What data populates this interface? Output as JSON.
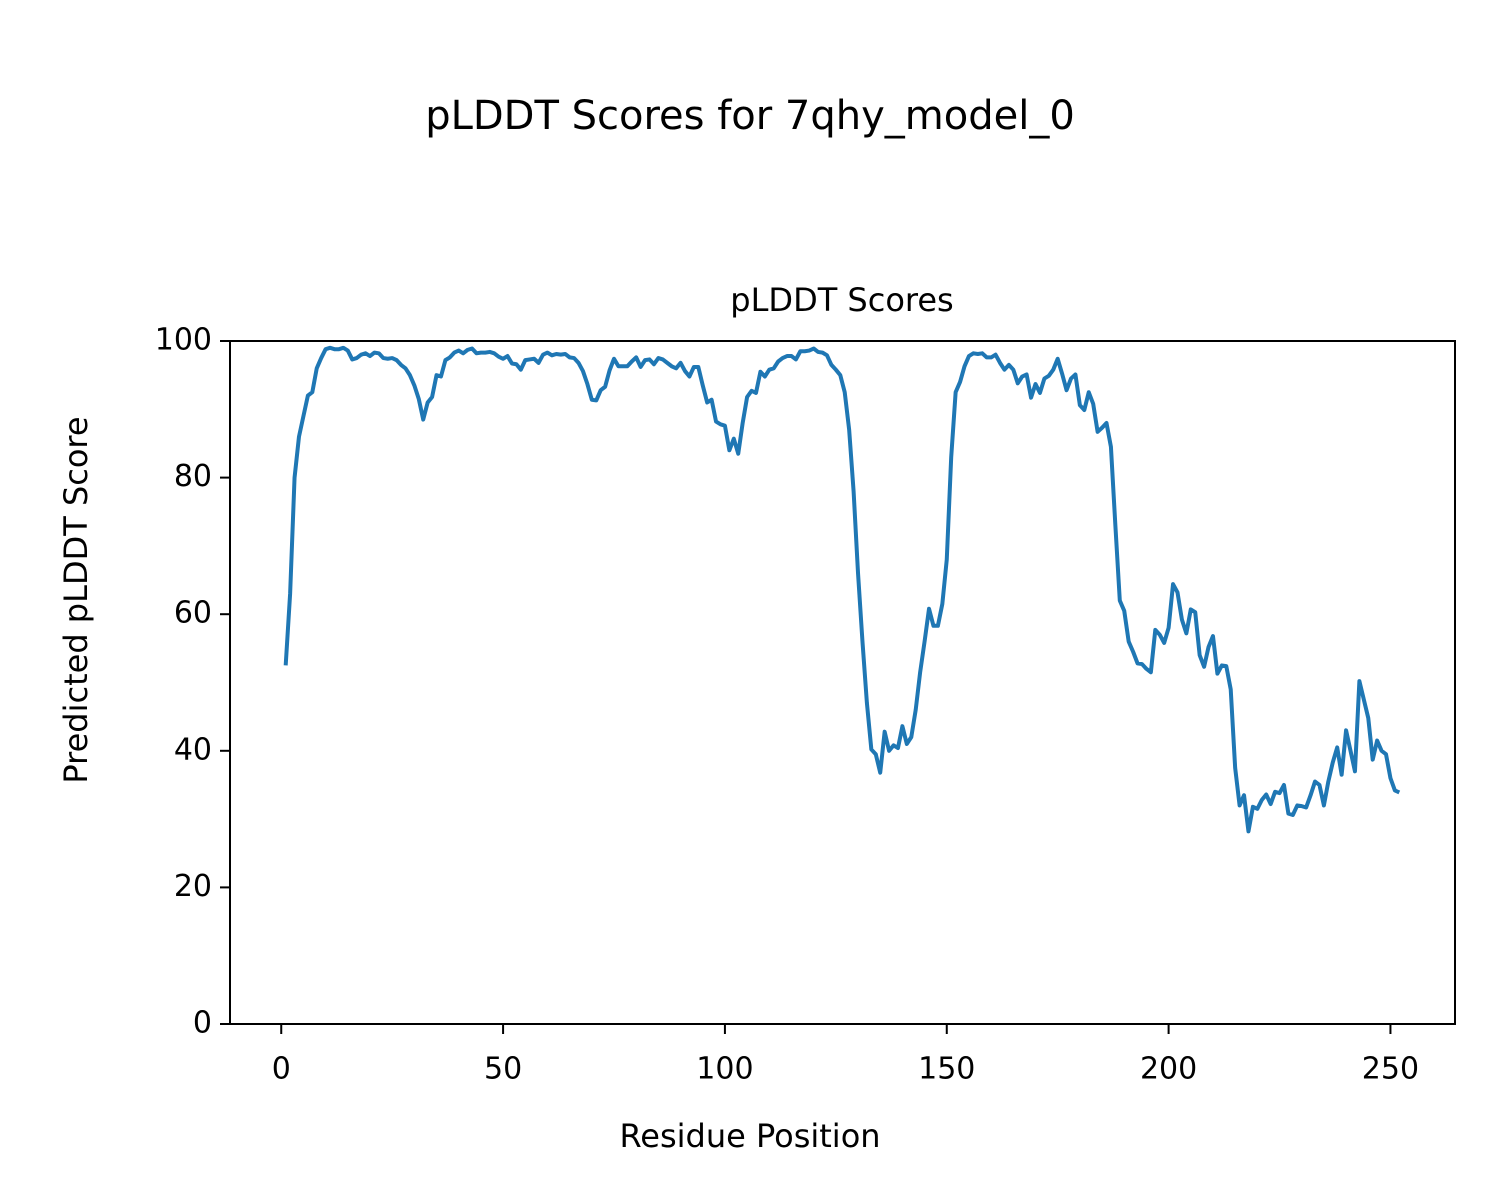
{
  "chart_data": {
    "type": "line",
    "title": "pLDDT Scores for 7qhy_model_0",
    "subtitle": "pLDDT Scores",
    "x_label": "Residue Position",
    "y_label": "Predicted pLDDT Score",
    "xlim": [
      -11.55,
      264.55
    ],
    "xticks": [
      0,
      50,
      100,
      150,
      200,
      250
    ],
    "ylim": [
      0,
      100
    ],
    "yticks": [
      0,
      20,
      40,
      60,
      80,
      100
    ],
    "series": [
      {
        "color": "#1f77b4",
        "x": [
          1,
          2,
          3,
          4,
          5,
          6,
          7,
          8,
          9,
          10,
          11,
          12,
          13,
          14,
          15,
          16,
          17,
          18,
          19,
          20,
          21,
          22,
          23,
          24,
          25,
          26,
          27,
          28,
          29,
          30,
          31,
          32,
          33,
          34,
          35,
          36,
          37,
          38,
          39,
          40,
          41,
          42,
          43,
          44,
          45,
          46,
          47,
          48,
          49,
          50,
          51,
          52,
          53,
          54,
          55,
          56,
          57,
          58,
          59,
          60,
          61,
          62,
          63,
          64,
          65,
          66,
          67,
          68,
          69,
          70,
          71,
          72,
          73,
          74,
          75,
          76,
          77,
          78,
          79,
          80,
          81,
          82,
          83,
          84,
          85,
          86,
          87,
          88,
          89,
          90,
          91,
          92,
          93,
          94,
          95,
          96,
          97,
          98,
          99,
          100,
          101,
          102,
          103,
          104,
          105,
          106,
          107,
          108,
          109,
          110,
          111,
          112,
          113,
          114,
          115,
          116,
          117,
          118,
          119,
          120,
          121,
          122,
          123,
          124,
          125,
          126,
          127,
          128,
          129,
          130,
          131,
          132,
          133,
          134,
          135,
          136,
          137,
          138,
          139,
          140,
          141,
          142,
          143,
          144,
          145,
          146,
          147,
          148,
          149,
          150,
          151,
          152,
          153,
          154,
          155,
          156,
          157,
          158,
          159,
          160,
          161,
          162,
          163,
          164,
          165,
          166,
          167,
          168,
          169,
          170,
          171,
          172,
          173,
          174,
          175,
          176,
          177,
          178,
          179,
          180,
          181,
          182,
          183,
          184,
          185,
          186,
          187,
          188,
          189,
          190,
          191,
          192,
          193,
          194,
          195,
          196,
          197,
          198,
          199,
          200,
          201,
          202,
          203,
          204,
          205,
          206,
          207,
          208,
          209,
          210,
          211,
          212,
          213,
          214,
          215,
          216,
          217,
          218,
          219,
          220,
          221,
          222,
          223,
          224,
          225,
          226,
          227,
          228,
          229,
          230,
          231,
          232,
          233,
          234,
          235,
          236,
          237,
          238,
          239,
          240,
          241,
          242,
          243,
          244,
          245,
          246,
          247,
          248,
          249,
          250,
          251,
          252
        ],
        "values": [
          52.5,
          63,
          80,
          86,
          89,
          92,
          92.5,
          96,
          97.5,
          98.8,
          99,
          98.8,
          98.8,
          99,
          98.6,
          97.3,
          97.5,
          98,
          98.2,
          97.8,
          98.3,
          98.2,
          97.5,
          97.4,
          97.5,
          97.2,
          96.5,
          96,
          95,
          93.5,
          91.5,
          88.5,
          91,
          91.8,
          95,
          94.8,
          97.2,
          97.6,
          98.3,
          98.6,
          98.2,
          98.7,
          98.9,
          98.2,
          98.3,
          98.3,
          98.4,
          98.2,
          97.7,
          97.4,
          97.8,
          96.7,
          96.6,
          95.8,
          97.2,
          97.3,
          97.4,
          96.8,
          98,
          98.3,
          97.9,
          98.1,
          98,
          98.1,
          97.6,
          97.5,
          96.8,
          95.6,
          93.7,
          91.4,
          91.3,
          92.8,
          93.3,
          95.7,
          97.4,
          96.3,
          96.3,
          96.3,
          97,
          97.6,
          96.2,
          97.2,
          97.3,
          96.6,
          97.5,
          97.3,
          96.8,
          96.3,
          96,
          96.8,
          95.6,
          94.8,
          96.2,
          96.2,
          93.5,
          91,
          91.4,
          88.2,
          87.8,
          87.6,
          84,
          85.7,
          83.5,
          88,
          91.8,
          92.7,
          92.4,
          95.5,
          94.8,
          95.8,
          96,
          97,
          97.5,
          97.8,
          97.8,
          97.3,
          98.5,
          98.5,
          98.6,
          98.9,
          98.4,
          98.3,
          97.9,
          96.5,
          95.8,
          95,
          92.5,
          87,
          78,
          66,
          56,
          47,
          40.2,
          39.5,
          36.8,
          42.8,
          40,
          40.8,
          40.4,
          43.6,
          41,
          42,
          46,
          51.5,
          56,
          60.8,
          58.3,
          58.3,
          61.5,
          68,
          83,
          92.5,
          94,
          96.3,
          97.8,
          98.2,
          98.1,
          98.2,
          97.6,
          97.6,
          98,
          96.8,
          95.8,
          96.5,
          95.8,
          93.8,
          94.8,
          95.1,
          91.7,
          93.7,
          92.4,
          94.5,
          94.9,
          95.8,
          97.4,
          95.2,
          92.8,
          94.5,
          95.1,
          90.6,
          89.9,
          92.5,
          90.8,
          86.7,
          87.3,
          88,
          84.5,
          73,
          62,
          60.5,
          56,
          54.5,
          52.8,
          52.7,
          52,
          51.5,
          57.7,
          57,
          55.8,
          58,
          64.4,
          63.2,
          59.2,
          57.2,
          60.7,
          60.3,
          54,
          52.3,
          55.2,
          56.8,
          51.3,
          52.5,
          52.4,
          49,
          37.5,
          32,
          33.5,
          28.2,
          31.8,
          31.5,
          32.8,
          33.6,
          32.2,
          34,
          33.8,
          35,
          30.8,
          30.6,
          32,
          31.9,
          31.7,
          33.5,
          35.5,
          35,
          32,
          35.5,
          38.3,
          40.5,
          36.5,
          43,
          40,
          37,
          50.2,
          47.5,
          44.8,
          38.7,
          41.5,
          40,
          39.5,
          36,
          34.2,
          33.9
        ]
      }
    ]
  }
}
